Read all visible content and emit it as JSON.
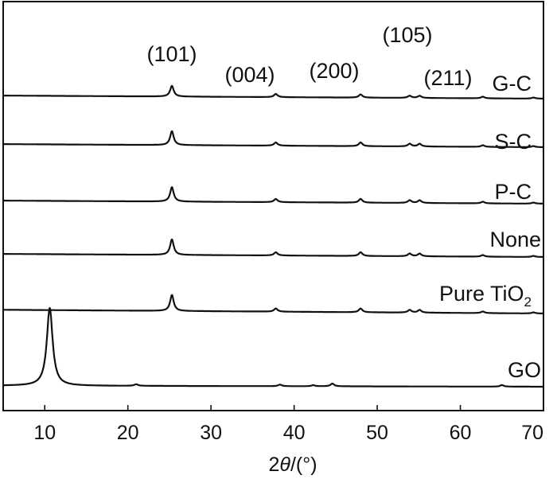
{
  "chart_data": {
    "type": "line",
    "title": "",
    "xlabel": "2θ/(°)",
    "xlabel_parts": {
      "prefix": "2",
      "symbol": "θ",
      "suffix": "/(°)"
    },
    "ylabel": "",
    "xlim": [
      5,
      70
    ],
    "xticks": [
      10,
      20,
      30,
      40,
      50,
      60,
      70
    ],
    "y_axis_ticks_labeled": false,
    "grid": false,
    "legend": "none",
    "line_color": "#111111",
    "peak_labels": [
      {
        "text": "(101)",
        "x": 25.3
      },
      {
        "text": "(004)",
        "x": 37.8
      },
      {
        "text": "(200)",
        "x": 48.0
      },
      {
        "text": "(105)",
        "x": 53.9
      },
      {
        "text": "(211)",
        "x": 55.1
      }
    ],
    "series": [
      {
        "name": "G-C",
        "name_base": "G-C",
        "name_sub": "",
        "baseline_start": 0.58,
        "baseline_end": 0.0,
        "peaks": [
          [
            25.3,
            2.0
          ],
          [
            37.8,
            0.6
          ],
          [
            48.0,
            0.6
          ],
          [
            53.9,
            0.4
          ],
          [
            55.1,
            0.4
          ],
          [
            62.7,
            0.3
          ],
          [
            68.8,
            0.2
          ]
        ]
      },
      {
        "name": "S-C",
        "name_base": "S-C",
        "name_sub": "",
        "baseline_start": 0.58,
        "baseline_end": 0.0,
        "peaks": [
          [
            25.3,
            2.6
          ],
          [
            37.8,
            0.6
          ],
          [
            48.0,
            0.7
          ],
          [
            53.9,
            0.5
          ],
          [
            55.1,
            0.5
          ],
          [
            62.7,
            0.3
          ],
          [
            68.8,
            0.2
          ]
        ]
      },
      {
        "name": "P-C",
        "name_base": "P-C",
        "name_sub": "",
        "baseline_start": 0.58,
        "baseline_end": 0.0,
        "peaks": [
          [
            25.3,
            2.7
          ],
          [
            37.8,
            0.6
          ],
          [
            48.0,
            0.7
          ],
          [
            53.9,
            0.5
          ],
          [
            55.1,
            0.5
          ],
          [
            62.7,
            0.3
          ],
          [
            68.8,
            0.2
          ]
        ]
      },
      {
        "name": "None",
        "name_base": "None",
        "name_sub": "",
        "baseline_start": 0.58,
        "baseline_end": 0.0,
        "peaks": [
          [
            25.3,
            2.9
          ],
          [
            37.8,
            0.6
          ],
          [
            48.0,
            0.7
          ],
          [
            53.9,
            0.5
          ],
          [
            55.1,
            0.5
          ],
          [
            62.7,
            0.3
          ],
          [
            68.8,
            0.2
          ]
        ]
      },
      {
        "name": "Pure TiO2",
        "name_base": "Pure TiO",
        "name_sub": "2",
        "baseline_start": 0.7,
        "baseline_end": 0.0,
        "peaks": [
          [
            25.3,
            3.0
          ],
          [
            37.8,
            0.6
          ],
          [
            48.0,
            0.7
          ],
          [
            53.9,
            0.5
          ],
          [
            55.1,
            0.5
          ],
          [
            62.7,
            0.3
          ],
          [
            68.8,
            0.2
          ]
        ]
      },
      {
        "name": "GO",
        "name_base": "GO",
        "name_sub": "",
        "baseline_start": 0.2,
        "baseline_end": 0.0,
        "peaks": [
          [
            10.6,
            14.6
          ],
          [
            21.0,
            0.3
          ],
          [
            38.3,
            0.3
          ],
          [
            42.3,
            0.2
          ],
          [
            44.6,
            0.5
          ],
          [
            65.0,
            0.3
          ]
        ]
      }
    ]
  }
}
